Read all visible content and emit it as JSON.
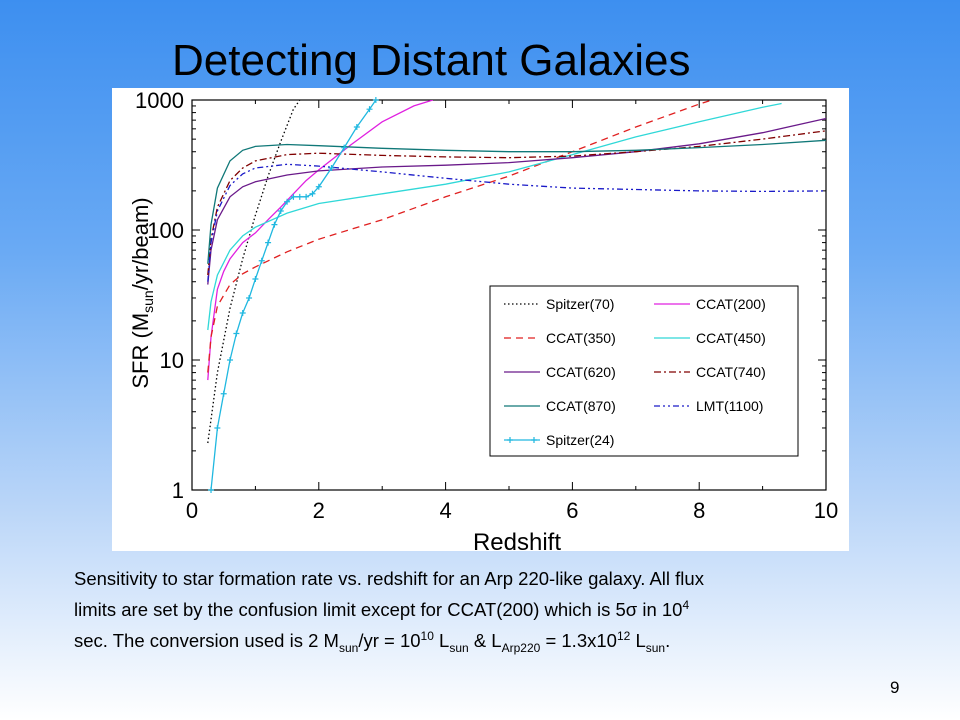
{
  "slide": {
    "title": "Detecting Distant Galaxies",
    "number": "9"
  },
  "caption": {
    "line1": "Sensitivity to star formation rate vs. redshift for an Arp 220-like galaxy.  All flux",
    "line2_a": "limits are set by the confusion limit except for CCAT(200) which is 5",
    "line2_sigma": "σ",
    "line2_b": " in 10",
    "line2_sup": "4",
    "line3_a": "sec.  The conversion used is 2 M",
    "line3_sub1": "sun",
    "line3_b": "/yr = 10",
    "line3_sup1": "10",
    "line3_c": " L",
    "line3_sub2": "sun",
    "line3_d": " & L",
    "line3_sub3": "Arp220",
    "line3_e": " = 1.3x10",
    "line3_sup2": "12",
    "line3_f": " L",
    "line3_sub4": "sun",
    "line3_g": "."
  },
  "chart_data": {
    "type": "line",
    "xlabel": "Redshift",
    "ylabel_parts": [
      "SFR (M",
      "sun",
      "/yr/beam)"
    ],
    "xlim": [
      0,
      10
    ],
    "ylim": [
      1,
      1000
    ],
    "yscale": "log",
    "xticks": [
      "0",
      "2",
      "4",
      "6",
      "8",
      "10"
    ],
    "yticks": [
      "1",
      "10",
      "100",
      "1000"
    ],
    "grid": false,
    "legend_position": "lower-right",
    "series": [
      {
        "name": "Spitzer(70)",
        "color": "#000000",
        "dash": "1.5,2.5",
        "marker": "none",
        "x": [
          0.25,
          0.4,
          0.6,
          0.8,
          1.0,
          1.2,
          1.4,
          1.6,
          1.7
        ],
        "y": [
          2.3,
          8,
          25,
          60,
          130,
          260,
          480,
          850,
          1000
        ]
      },
      {
        "name": "CCAT(200)",
        "color": "#e020e0",
        "dash": "",
        "marker": "none",
        "x": [
          0.25,
          0.3,
          0.4,
          0.5,
          0.6,
          0.8,
          1.0,
          1.2,
          1.4,
          1.6,
          1.8,
          2.0,
          2.5,
          3.0,
          3.5,
          3.8
        ],
        "y": [
          7,
          15,
          35,
          48,
          60,
          80,
          95,
          120,
          150,
          190,
          240,
          290,
          450,
          680,
          900,
          1000
        ]
      },
      {
        "name": "CCAT(350)",
        "color": "#e02020",
        "dash": "7,5",
        "marker": "none",
        "x": [
          0.25,
          0.3,
          0.4,
          0.6,
          0.8,
          1.0,
          1.5,
          2.0,
          3.0,
          4.0,
          5.0,
          6.0,
          7.0,
          8.0,
          8.2
        ],
        "y": [
          8,
          15,
          26,
          38,
          46,
          52,
          68,
          85,
          120,
          180,
          260,
          400,
          620,
          930,
          1000
        ]
      },
      {
        "name": "CCAT(450)",
        "color": "#30d8d8",
        "dash": "",
        "marker": "none",
        "x": [
          0.25,
          0.3,
          0.4,
          0.6,
          0.8,
          1.0,
          1.5,
          2.0,
          3.0,
          4.0,
          5.0,
          6.0,
          7.0,
          8.0,
          9.0,
          9.3
        ],
        "y": [
          17,
          28,
          45,
          70,
          90,
          105,
          135,
          160,
          190,
          225,
          280,
          380,
          520,
          680,
          880,
          940
        ]
      },
      {
        "name": "CCAT(620)",
        "color": "#6a1a8a",
        "dash": "",
        "marker": "none",
        "x": [
          0.25,
          0.3,
          0.4,
          0.6,
          0.8,
          1.0,
          1.5,
          2.0,
          3.0,
          4.0,
          5.0,
          6.0,
          7.0,
          8.0,
          9.0,
          10.0
        ],
        "y": [
          38,
          70,
          120,
          180,
          215,
          235,
          265,
          285,
          305,
          315,
          330,
          360,
          400,
          460,
          560,
          720
        ]
      },
      {
        "name": "CCAT(740)",
        "color": "#800000",
        "dash": "7,3,2,3",
        "marker": "none",
        "x": [
          0.25,
          0.3,
          0.4,
          0.6,
          0.8,
          1.0,
          1.5,
          2.0,
          3.0,
          4.0,
          5.0,
          6.0,
          7.0,
          8.0,
          9.0,
          10.0
        ],
        "y": [
          45,
          85,
          150,
          240,
          300,
          340,
          380,
          390,
          375,
          365,
          360,
          370,
          400,
          440,
          500,
          580
        ]
      },
      {
        "name": "CCAT(870)",
        "color": "#107878",
        "dash": "",
        "marker": "none",
        "x": [
          0.25,
          0.3,
          0.4,
          0.6,
          0.8,
          1.0,
          1.5,
          2.0,
          3.0,
          4.0,
          5.0,
          6.0,
          7.0,
          8.0,
          9.0,
          10.0
        ],
        "y": [
          55,
          110,
          210,
          340,
          410,
          440,
          455,
          445,
          425,
          410,
          400,
          400,
          410,
          430,
          455,
          490
        ]
      },
      {
        "name": "LMT(1100)",
        "color": "#1a1ac8",
        "dash": "6,3,2,3,2,3",
        "marker": "none",
        "x": [
          0.25,
          0.3,
          0.4,
          0.6,
          0.8,
          1.0,
          1.5,
          2.0,
          3.0,
          4.0,
          5.0,
          6.0,
          7.0,
          8.0,
          9.0,
          10.0
        ],
        "y": [
          40,
          80,
          140,
          220,
          270,
          300,
          320,
          310,
          280,
          250,
          225,
          210,
          205,
          200,
          198,
          200
        ]
      },
      {
        "name": "Spitzer(24)",
        "color": "#20b8e0",
        "dash": "",
        "marker": "plus",
        "x": [
          0.3,
          0.4,
          0.5,
          0.6,
          0.7,
          0.8,
          0.9,
          1.0,
          1.1,
          1.2,
          1.3,
          1.4,
          1.5,
          1.6,
          1.7,
          1.8,
          1.9,
          2.0,
          2.2,
          2.4,
          2.6,
          2.8,
          2.9
        ],
        "y": [
          1.0,
          3,
          5.5,
          10,
          16,
          23,
          30,
          42,
          58,
          80,
          110,
          140,
          165,
          180,
          180,
          180,
          190,
          215,
          300,
          430,
          620,
          850,
          1000
        ]
      }
    ]
  }
}
